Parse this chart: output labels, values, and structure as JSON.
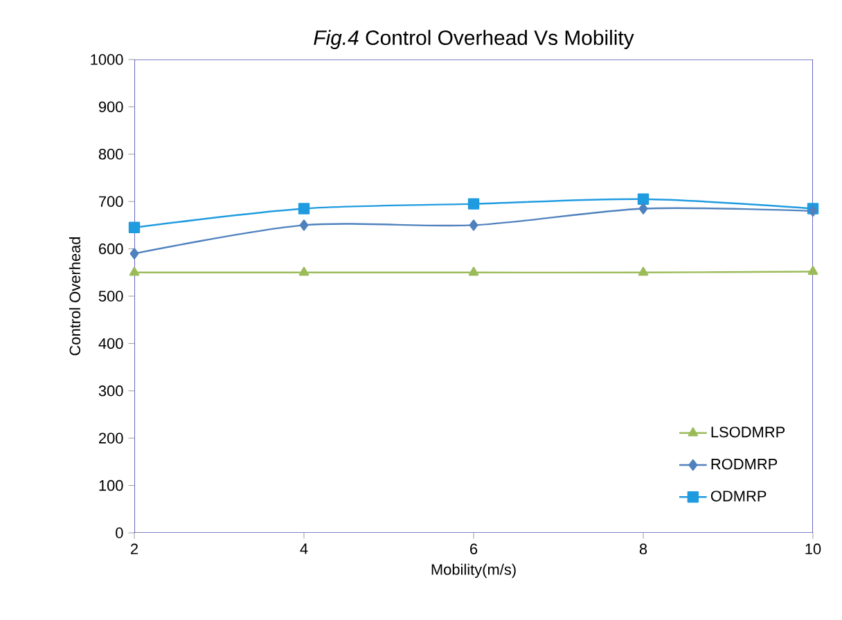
{
  "chart_data": {
    "type": "line",
    "title": "*Fig.4* Control Overhead Vs Mobility",
    "xlabel": "Mobility(m/s)",
    "ylabel": "Control Overhead",
    "x": [
      2,
      4,
      6,
      8,
      10
    ],
    "xlim": [
      2,
      10
    ],
    "xticks": [
      2,
      4,
      6,
      8,
      10
    ],
    "ylim": [
      0,
      1000
    ],
    "yticks": [
      0,
      100,
      200,
      300,
      400,
      500,
      600,
      700,
      800,
      900,
      1000
    ],
    "series": [
      {
        "name": "LSODMRP",
        "color": "#9bbb59",
        "marker": "triangle",
        "values": [
          550,
          550,
          550,
          550,
          552
        ]
      },
      {
        "name": "RODMRP",
        "color": "#4f81bd",
        "marker": "diamond",
        "values": [
          590,
          650,
          650,
          685,
          680
        ]
      },
      {
        "name": "ODMRP",
        "color": "#1f9be0",
        "marker": "square",
        "values": [
          645,
          685,
          695,
          705,
          685
        ]
      }
    ],
    "grid": false,
    "legend": "bottom right"
  }
}
